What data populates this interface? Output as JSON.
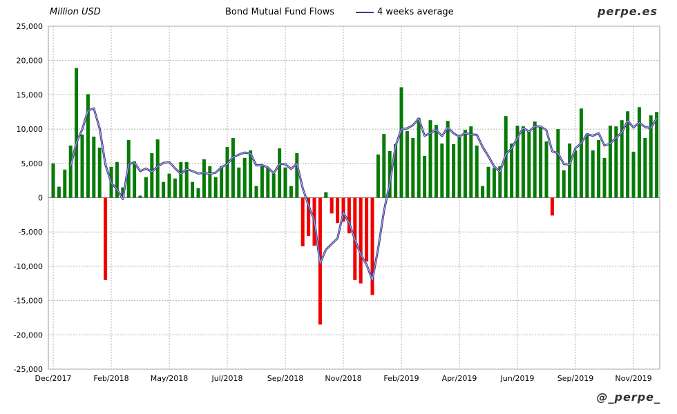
{
  "header": {
    "unit_label": "Million USD",
    "brand": "perpe.es",
    "handle": "@_perpe_"
  },
  "colors": {
    "positive": "#087a08",
    "negative": "#f20000",
    "line": "#3a3a8a",
    "grid": "#b0b0b0"
  },
  "chart_data": {
    "type": "bar",
    "title": "Bond Mutual Fund Flows",
    "ylabel": "Million USD",
    "ylim": [
      -25000,
      25000
    ],
    "yticks": [
      25000,
      20000,
      15000,
      10000,
      5000,
      0,
      -5000,
      -10000,
      -15000,
      -20000,
      -25000
    ],
    "ytick_labels": [
      "25,000",
      "20,000",
      "15,000",
      "10,000",
      "5,000",
      "0",
      "-5,000",
      "-10,000",
      "-15,000",
      "-20,000",
      "-25,000"
    ],
    "xtick_labels": [
      "Dec/2017",
      "Feb/2018",
      "May/2018",
      "Jul/2018",
      "Sep/2018",
      "Nov/2018",
      "Feb/2019",
      "Apr/2019",
      "Jun/2019",
      "Sep/2019",
      "Nov/2019"
    ],
    "xtick_every": 10,
    "grid": true,
    "legend": [
      {
        "name": "Bond Mutual Fund Flows",
        "type": "bar"
      },
      {
        "name": "4 weeks average",
        "type": "line"
      }
    ],
    "legend_position": "top-center",
    "series": [
      {
        "name": "Bond Mutual Fund Flows",
        "type": "bar",
        "values": [
          5000,
          1600,
          4100,
          7600,
          18900,
          9200,
          15100,
          8900,
          7300,
          -12000,
          4500,
          5200,
          1500,
          8400,
          5300,
          300,
          3000,
          6500,
          8500,
          2300,
          3500,
          2800,
          5200,
          5200,
          2300,
          1400,
          5600,
          4600,
          3000,
          4600,
          7400,
          8700,
          4400,
          5800,
          6900,
          1700,
          4600,
          4400,
          3500,
          7200,
          4400,
          1700,
          6500,
          -7100,
          -5600,
          -7000,
          -18500,
          800,
          -2300,
          -3700,
          -3500,
          -5200,
          -12000,
          -12500,
          -9300,
          -14200,
          6300,
          9300,
          6800,
          7800,
          16100,
          9700,
          8700,
          11600,
          6100,
          11300,
          10600,
          7900,
          11200,
          7800,
          8800,
          9900,
          10400,
          7600,
          1700,
          4500,
          4300,
          4600,
          11900,
          7900,
          10500,
          10400,
          9700,
          11100,
          10300,
          8200,
          -2600,
          10000,
          4000,
          7900,
          6900,
          13000,
          9300,
          6900,
          8400,
          5800,
          10500,
          10400,
          11300,
          12600,
          6700,
          13200,
          8700,
          12000,
          12500
        ]
      },
      {
        "name": "4 weeks average",
        "type": "line",
        "window": 4
      }
    ]
  }
}
